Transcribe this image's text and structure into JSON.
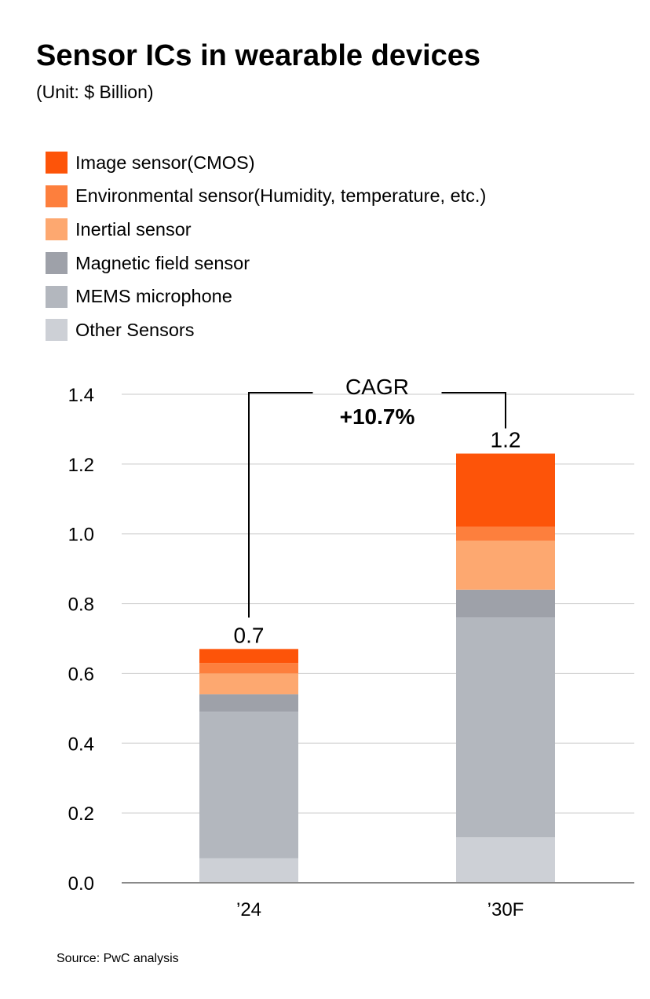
{
  "title": "Sensor ICs in wearable devices",
  "subtitle": "(Unit: $ Billion)",
  "source": "Source: PwC analysis",
  "chart_data": {
    "type": "bar",
    "stacked": true,
    "categories": [
      "’24",
      "’30F"
    ],
    "series": [
      {
        "name": "Other Sensors",
        "color": "#cdd0d6",
        "values": [
          0.07,
          0.13
        ]
      },
      {
        "name": "MEMS microphone",
        "color": "#b3b7be",
        "values": [
          0.42,
          0.63
        ]
      },
      {
        "name": "Magnetic field sensor",
        "color": "#9ea1a9",
        "values": [
          0.05,
          0.08
        ]
      },
      {
        "name": "Inertial sensor",
        "color": "#fda870",
        "values": [
          0.06,
          0.14
        ]
      },
      {
        "name": "Environmental sensor(Humidity, temperature, etc.)",
        "color": "#fd7f3d",
        "values": [
          0.03,
          0.04
        ]
      },
      {
        "name": "Image sensor(CMOS)",
        "color": "#fd5409",
        "values": [
          0.04,
          0.21
        ]
      }
    ],
    "totals": [
      "0.7",
      "1.2"
    ],
    "ylim": [
      0,
      1.4
    ],
    "yticks": [
      "0.0",
      "0.2",
      "0.4",
      "0.6",
      "0.8",
      "1.0",
      "1.2",
      "1.4"
    ],
    "grid": true,
    "legend_position": "top-left",
    "annotation": {
      "label": "CAGR",
      "value": "+10.7%"
    }
  }
}
